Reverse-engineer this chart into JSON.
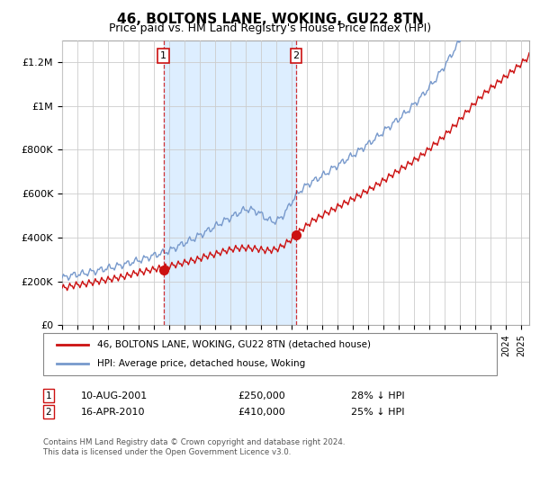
{
  "title": "46, BOLTONS LANE, WOKING, GU22 8TN",
  "subtitle": "Price paid vs. HM Land Registry's House Price Index (HPI)",
  "title_fontsize": 11,
  "subtitle_fontsize": 9,
  "ylabel_ticks": [
    "£0",
    "£200K",
    "£400K",
    "£600K",
    "£800K",
    "£1M",
    "£1.2M"
  ],
  "ytick_values": [
    0,
    200000,
    400000,
    600000,
    800000,
    1000000,
    1200000
  ],
  "ylim": [
    0,
    1300000
  ],
  "xlim_start": 1995.0,
  "xlim_end": 2025.5,
  "grid_color": "#cccccc",
  "hpi_color": "#7799cc",
  "price_color": "#cc1111",
  "shaded_region_color": "#ddeeff",
  "transaction1_date": 2001.617,
  "transaction1_price": 250000,
  "transaction2_date": 2010.288,
  "transaction2_price": 410000,
  "legend_label_price": "46, BOLTONS LANE, WOKING, GU22 8TN (detached house)",
  "legend_label_hpi": "HPI: Average price, detached house, Woking",
  "footnote1_label": "1",
  "footnote1_date": "10-AUG-2001",
  "footnote1_price": "£250,000",
  "footnote1_hpi": "28% ↓ HPI",
  "footnote2_label": "2",
  "footnote2_date": "16-APR-2010",
  "footnote2_price": "£410,000",
  "footnote2_hpi": "25% ↓ HPI",
  "copyright_text": "Contains HM Land Registry data © Crown copyright and database right 2024.\nThis data is licensed under the Open Government Licence v3.0."
}
